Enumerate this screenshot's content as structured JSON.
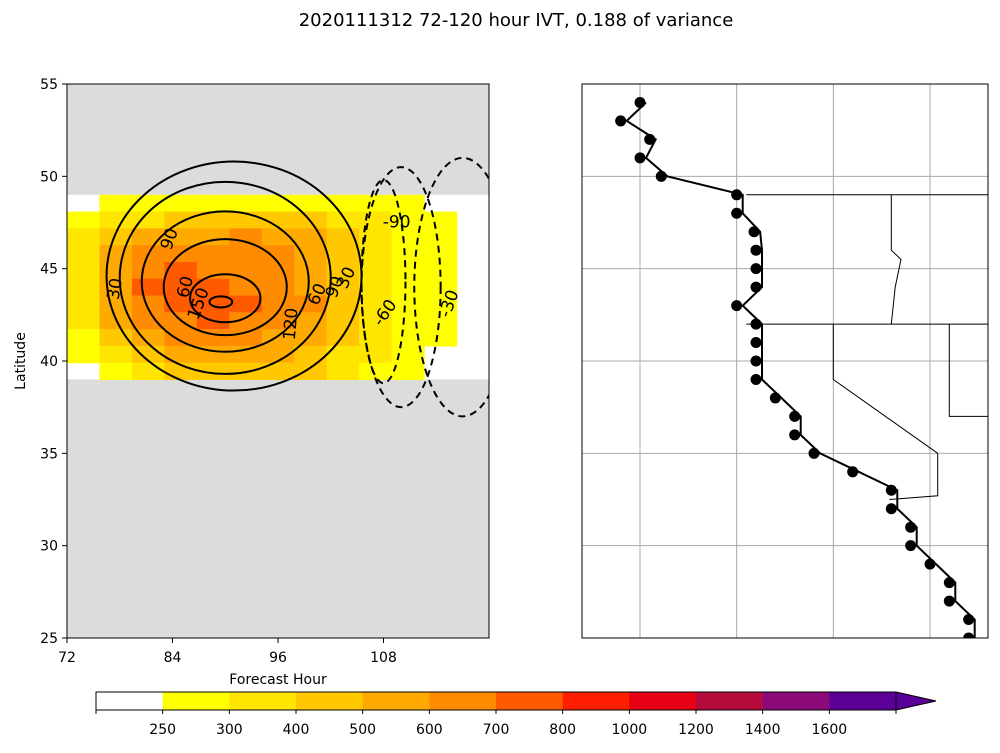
{
  "title": "2020111312 72-120 hour IVT, 0.188 of variance",
  "chart_data": [
    {
      "type": "contour",
      "xlabel": "Forecast Hour",
      "ylabel": "Latitude",
      "xlim": [
        72,
        120
      ],
      "ylim": [
        25,
        55
      ],
      "x_ticks": [
        "72",
        "84",
        "96",
        "108"
      ],
      "y_ticks": [
        "25",
        "30",
        "35",
        "40",
        "45",
        "50",
        "55"
      ],
      "data_lat_range": [
        39,
        49
      ],
      "missing_fill": "#dcdcdc",
      "filled_levels": [
        {
          "min": 250,
          "max": 300,
          "color": "#ffff00"
        },
        {
          "min": 300,
          "max": 400,
          "color": "#ffe600"
        },
        {
          "min": 400,
          "max": 500,
          "color": "#ffc800"
        },
        {
          "min": 500,
          "max": 600,
          "color": "#ffaa00"
        },
        {
          "min": 600,
          "max": 700,
          "color": "#ff8c00"
        },
        {
          "min": 700,
          "max": 800,
          "color": "#ff5a00"
        }
      ],
      "line_contour_labels": [
        {
          "text": "30",
          "x": 77.5,
          "y": 43.9,
          "rot": -80
        },
        {
          "text": "90",
          "x": 83.7,
          "y": 46.6,
          "rot": -70
        },
        {
          "text": "60",
          "x": 85.5,
          "y": 44.0,
          "rot": -75
        },
        {
          "text": "150",
          "x": 87.0,
          "y": 43.1,
          "rot": -70
        },
        {
          "text": "120",
          "x": 97.5,
          "y": 42.0,
          "rot": -85
        },
        {
          "text": "60",
          "x": 100.5,
          "y": 43.6,
          "rot": -65
        },
        {
          "text": "90",
          "x": 102.5,
          "y": 44.0,
          "rot": -70
        },
        {
          "text": "30",
          "x": 103.8,
          "y": 44.5,
          "rot": -65
        },
        {
          "text": "-60",
          "x": 108.2,
          "y": 42.6,
          "rot": -55
        },
        {
          "text": "-90",
          "x": 109.5,
          "y": 47.5,
          "rot": 0
        },
        {
          "text": "-30",
          "x": 115.5,
          "y": 43.1,
          "rot": -70
        }
      ],
      "cells": [
        [
          0,
          1,
          1,
          1,
          1,
          1,
          1,
          1,
          1,
          1,
          1,
          0,
          0
        ],
        [
          1,
          2,
          2,
          3,
          3,
          3,
          3,
          3,
          2,
          2,
          1,
          1,
          0
        ],
        [
          2,
          3,
          4,
          4,
          4,
          5,
          4,
          4,
          3,
          2,
          1,
          1,
          0
        ],
        [
          2,
          4,
          5,
          5,
          5,
          5,
          5,
          4,
          3,
          2,
          1,
          1,
          0
        ],
        [
          2,
          4,
          5,
          6,
          5,
          5,
          5,
          4,
          3,
          2,
          1,
          1,
          0
        ],
        [
          2,
          4,
          6,
          6,
          6,
          5,
          5,
          4,
          3,
          2,
          1,
          1,
          0
        ],
        [
          2,
          4,
          5,
          6,
          6,
          6,
          5,
          5,
          3,
          2,
          1,
          1,
          0
        ],
        [
          2,
          4,
          5,
          5,
          6,
          5,
          5,
          4,
          3,
          2,
          1,
          1,
          0
        ],
        [
          1,
          3,
          4,
          5,
          5,
          5,
          4,
          4,
          3,
          2,
          1,
          1,
          0
        ],
        [
          1,
          2,
          3,
          4,
          4,
          4,
          4,
          3,
          2,
          2,
          1,
          0,
          0
        ],
        [
          0,
          1,
          2,
          3,
          3,
          3,
          3,
          3,
          2,
          1,
          1,
          0,
          0
        ]
      ]
    },
    {
      "type": "map",
      "gridlines_lon": [
        -130,
        -125,
        -120,
        -115
      ],
      "gridlines_lat": [
        30,
        35,
        40,
        45,
        50
      ],
      "extent": {
        "lon": [
          -133,
          -112
        ],
        "lat": [
          25,
          55
        ]
      },
      "coastal_points": [
        {
          "lon": -130.0,
          "lat": 54.0
        },
        {
          "lon": -131.0,
          "lat": 53.0
        },
        {
          "lon": -129.5,
          "lat": 52.0
        },
        {
          "lon": -130.0,
          "lat": 51.0
        },
        {
          "lon": -128.9,
          "lat": 50.0
        },
        {
          "lon": -125.0,
          "lat": 49.0
        },
        {
          "lon": -125.0,
          "lat": 48.0
        },
        {
          "lon": -124.1,
          "lat": 47.0
        },
        {
          "lon": -124.0,
          "lat": 46.0
        },
        {
          "lon": -124.0,
          "lat": 45.0
        },
        {
          "lon": -124.0,
          "lat": 44.0
        },
        {
          "lon": -125.0,
          "lat": 43.0
        },
        {
          "lon": -124.0,
          "lat": 42.0
        },
        {
          "lon": -124.0,
          "lat": 41.0
        },
        {
          "lon": -124.0,
          "lat": 40.0
        },
        {
          "lon": -124.0,
          "lat": 39.0
        },
        {
          "lon": -123.0,
          "lat": 38.0
        },
        {
          "lon": -122.0,
          "lat": 37.0
        },
        {
          "lon": -122.0,
          "lat": 36.0
        },
        {
          "lon": -121.0,
          "lat": 35.0
        },
        {
          "lon": -119.0,
          "lat": 34.0
        },
        {
          "lon": -117.0,
          "lat": 33.0
        },
        {
          "lon": -117.0,
          "lat": 32.0
        },
        {
          "lon": -116.0,
          "lat": 31.0
        },
        {
          "lon": -116.0,
          "lat": 30.0
        },
        {
          "lon": -115.0,
          "lat": 29.0
        },
        {
          "lon": -114.0,
          "lat": 28.0
        },
        {
          "lon": -114.0,
          "lat": 27.0
        },
        {
          "lon": -113.0,
          "lat": 26.0
        },
        {
          "lon": -113.0,
          "lat": 25.0
        }
      ]
    }
  ],
  "colorbar": {
    "ticks": [
      "250",
      "300",
      "400",
      "500",
      "600",
      "700",
      "800",
      "1000",
      "1200",
      "1400",
      "1600"
    ],
    "colors": [
      "#ffffff",
      "#ffff00",
      "#ffe600",
      "#ffc800",
      "#ffaa00",
      "#ff8c00",
      "#ff5a00",
      "#ff1e00",
      "#e60014",
      "#b40a3c",
      "#8c0a78",
      "#5a0096",
      "#5a0096"
    ],
    "extend": "max"
  }
}
